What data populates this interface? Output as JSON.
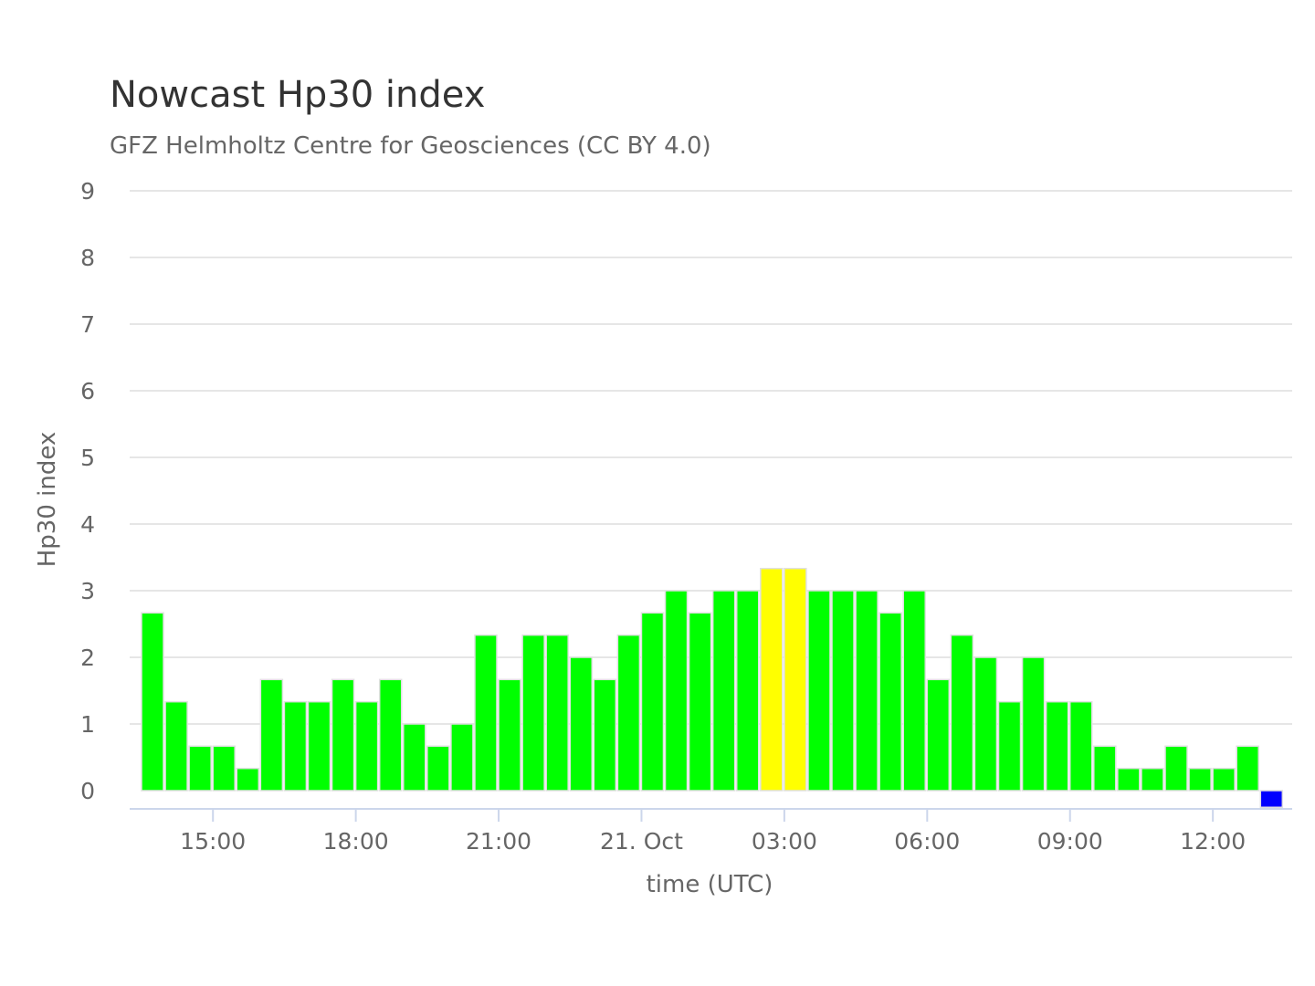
{
  "chart_data": {
    "type": "bar",
    "title": "Nowcast Hp30 index",
    "subtitle": "GFZ Helmholtz Centre for Geosciences (CC BY 4.0)",
    "xlabel": "time (UTC)",
    "ylabel": "Hp30 index",
    "ylim": [
      0,
      9
    ],
    "yticks": [
      "0",
      "1",
      "2",
      "3",
      "4",
      "5",
      "6",
      "7",
      "8",
      "9"
    ],
    "x_start": "2024-10-20 13:30",
    "interval_minutes": 30,
    "xticks": [
      {
        "label": "15:00",
        "time": "2024-10-20 15:00"
      },
      {
        "label": "18:00",
        "time": "2024-10-20 18:00"
      },
      {
        "label": "21:00",
        "time": "2024-10-20 21:00"
      },
      {
        "label": "21. Oct",
        "time": "2024-10-21 00:00"
      },
      {
        "label": "03:00",
        "time": "2024-10-21 03:00"
      },
      {
        "label": "06:00",
        "time": "2024-10-21 06:00"
      },
      {
        "label": "09:00",
        "time": "2024-10-21 09:00"
      },
      {
        "label": "12:00",
        "time": "2024-10-21 12:00"
      }
    ],
    "values": [
      2.667,
      1.333,
      0.667,
      0.667,
      0.333,
      1.667,
      1.333,
      1.333,
      1.667,
      1.333,
      1.667,
      1.0,
      0.667,
      1.0,
      2.333,
      1.667,
      2.333,
      2.333,
      2.0,
      1.667,
      2.333,
      2.667,
      3.0,
      2.667,
      3.0,
      3.0,
      3.333,
      3.333,
      3.0,
      3.0,
      3.0,
      2.667,
      3.0,
      1.667,
      2.333,
      2.0,
      1.333,
      2.0,
      1.333,
      1.333,
      0.667,
      0.333,
      0.333,
      0.667,
      0.333,
      0.333,
      0.667,
      -0.25
    ],
    "colors": {
      "green": "#00ff00",
      "yellow": "#ffff00",
      "blue": "#0000ff"
    },
    "bar_colors": [
      "green",
      "green",
      "green",
      "green",
      "green",
      "green",
      "green",
      "green",
      "green",
      "green",
      "green",
      "green",
      "green",
      "green",
      "green",
      "green",
      "green",
      "green",
      "green",
      "green",
      "green",
      "green",
      "green",
      "green",
      "green",
      "green",
      "yellow",
      "yellow",
      "green",
      "green",
      "green",
      "green",
      "green",
      "green",
      "green",
      "green",
      "green",
      "green",
      "green",
      "green",
      "green",
      "green",
      "green",
      "green",
      "green",
      "green",
      "green",
      "blue"
    ],
    "grid": true,
    "legend": "none"
  }
}
